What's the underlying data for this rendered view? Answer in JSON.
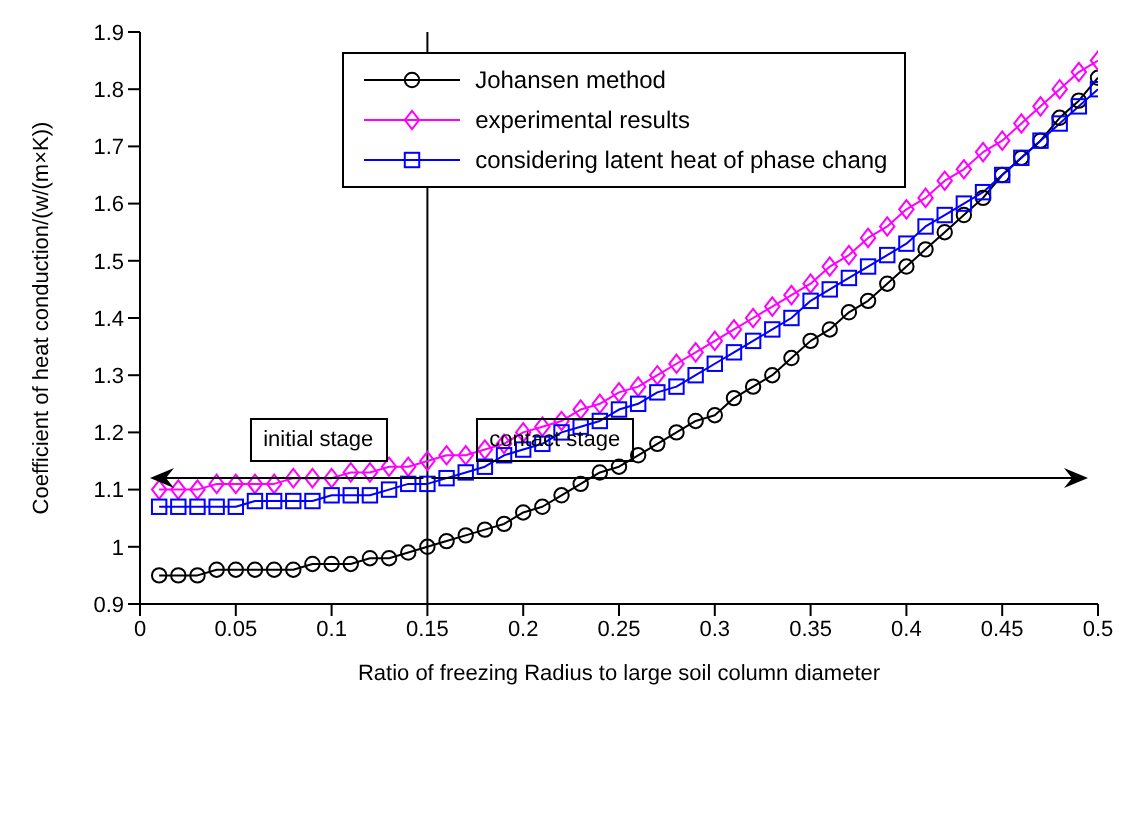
{
  "chart_data": {
    "type": "line",
    "xlabel": "Ratio of freezing Radius to large soil column diameter",
    "ylabel": "Coefficient of heat conduction/(w/(m×K))",
    "x": [
      0.01,
      0.02,
      0.03,
      0.04,
      0.05,
      0.06,
      0.07,
      0.08,
      0.09,
      0.1,
      0.11,
      0.12,
      0.13,
      0.14,
      0.15,
      0.16,
      0.17,
      0.18,
      0.19,
      0.2,
      0.21,
      0.22,
      0.23,
      0.24,
      0.25,
      0.26,
      0.27,
      0.28,
      0.29,
      0.3,
      0.31,
      0.32,
      0.33,
      0.34,
      0.35,
      0.36,
      0.37,
      0.38,
      0.39,
      0.4,
      0.41,
      0.42,
      0.43,
      0.44,
      0.45,
      0.46,
      0.47,
      0.48,
      0.49,
      0.5
    ],
    "series": [
      {
        "name": "Johansen method",
        "color": "#000000",
        "marker": "circle",
        "values": [
          0.95,
          0.95,
          0.95,
          0.96,
          0.96,
          0.96,
          0.96,
          0.96,
          0.97,
          0.97,
          0.97,
          0.98,
          0.98,
          0.99,
          1.0,
          1.01,
          1.02,
          1.03,
          1.04,
          1.06,
          1.07,
          1.09,
          1.11,
          1.13,
          1.14,
          1.16,
          1.18,
          1.2,
          1.22,
          1.23,
          1.26,
          1.28,
          1.3,
          1.33,
          1.36,
          1.38,
          1.41,
          1.43,
          1.46,
          1.49,
          1.52,
          1.55,
          1.58,
          1.61,
          1.65,
          1.68,
          1.71,
          1.75,
          1.78,
          1.82
        ]
      },
      {
        "name": "experimental results",
        "color": "#ff00ff",
        "marker": "diamond",
        "values": [
          1.1,
          1.1,
          1.1,
          1.11,
          1.11,
          1.11,
          1.11,
          1.12,
          1.12,
          1.12,
          1.13,
          1.13,
          1.14,
          1.14,
          1.15,
          1.16,
          1.16,
          1.17,
          1.18,
          1.2,
          1.21,
          1.22,
          1.24,
          1.25,
          1.27,
          1.28,
          1.3,
          1.32,
          1.34,
          1.36,
          1.38,
          1.4,
          1.42,
          1.44,
          1.46,
          1.49,
          1.51,
          1.54,
          1.56,
          1.59,
          1.61,
          1.64,
          1.66,
          1.69,
          1.71,
          1.74,
          1.77,
          1.8,
          1.83,
          1.85
        ]
      },
      {
        "name": "considering latent heat of phase chang",
        "color": "#0000ff",
        "marker": "square",
        "values": [
          1.07,
          1.07,
          1.07,
          1.07,
          1.07,
          1.08,
          1.08,
          1.08,
          1.08,
          1.09,
          1.09,
          1.09,
          1.1,
          1.11,
          1.11,
          1.12,
          1.13,
          1.14,
          1.16,
          1.17,
          1.18,
          1.2,
          1.21,
          1.22,
          1.24,
          1.25,
          1.27,
          1.28,
          1.3,
          1.32,
          1.34,
          1.36,
          1.38,
          1.4,
          1.43,
          1.45,
          1.47,
          1.49,
          1.51,
          1.53,
          1.56,
          1.58,
          1.6,
          1.62,
          1.65,
          1.68,
          1.71,
          1.74,
          1.77,
          1.8
        ]
      }
    ],
    "xlim": [
      0,
      0.5
    ],
    "xticks": [
      0,
      0.05,
      0.1,
      0.15,
      0.2,
      0.25,
      0.3,
      0.35,
      0.4,
      0.45,
      0.5
    ],
    "ylim": [
      0.9,
      1.9
    ],
    "yticks": [
      0.9,
      1,
      1.1,
      1.2,
      1.3,
      1.4,
      1.5,
      1.6,
      1.7,
      1.8,
      1.9
    ],
    "ref_lines": [
      {
        "axis": "x",
        "value": 0.15,
        "color": "#000000"
      }
    ],
    "annotations": [
      "initial stage",
      "contact stage"
    ],
    "legend": "top"
  }
}
